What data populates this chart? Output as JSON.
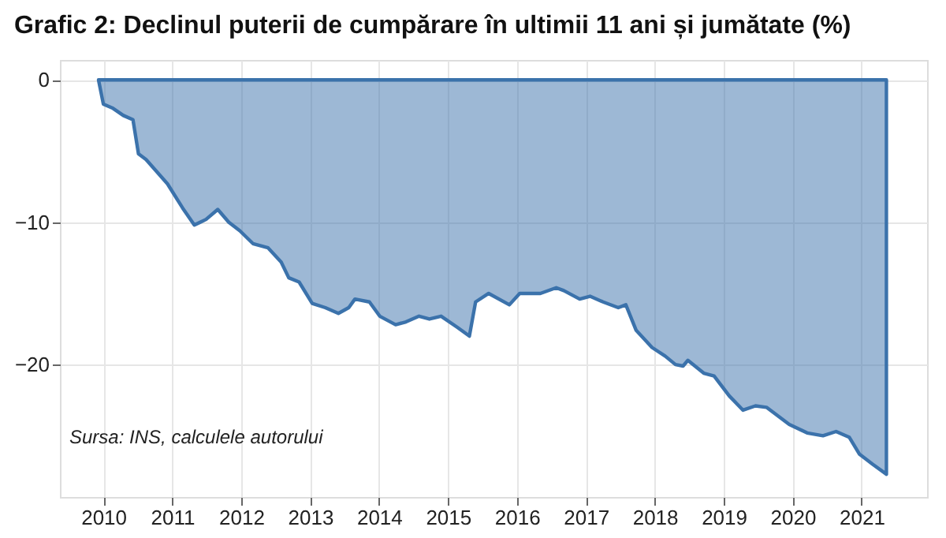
{
  "chart_data": {
    "type": "area",
    "title": "Grafic 2: Declinul puterii de cumpărare în ultimii 11 ani și jumătate (%)",
    "x": [
      2009.93,
      2010.0,
      2010.14,
      2010.29,
      2010.43,
      2010.51,
      2010.62,
      2010.93,
      2011.15,
      2011.32,
      2011.49,
      2011.66,
      2011.82,
      2011.98,
      2012.17,
      2012.39,
      2012.58,
      2012.69,
      2012.84,
      2013.03,
      2013.22,
      2013.41,
      2013.56,
      2013.65,
      2013.86,
      2014.01,
      2014.24,
      2014.39,
      2014.58,
      2014.73,
      2014.9,
      2015.14,
      2015.31,
      2015.4,
      2015.59,
      2015.89,
      2016.04,
      2016.34,
      2016.57,
      2016.68,
      2016.91,
      2017.06,
      2017.25,
      2017.47,
      2017.58,
      2017.73,
      2017.96,
      2018.15,
      2018.3,
      2018.41,
      2018.48,
      2018.71,
      2018.86,
      2019.08,
      2019.28,
      2019.46,
      2019.62,
      2019.95,
      2020.21,
      2020.44,
      2020.63,
      2020.82,
      2020.97,
      2021.16,
      2021.36
    ],
    "series": [
      {
        "color": "#3b72ab",
        "values": [
          0,
          -1.7,
          -2.0,
          -2.5,
          -2.8,
          -5.2,
          -5.6,
          -7.3,
          -9.0,
          -10.2,
          -9.8,
          -9.1,
          -10.0,
          -10.6,
          -11.5,
          -11.8,
          -12.8,
          -13.9,
          -14.2,
          -15.7,
          -16.0,
          -16.4,
          -16.0,
          -15.4,
          -15.6,
          -16.6,
          -17.2,
          -17.0,
          -16.6,
          -16.8,
          -16.6,
          -17.4,
          -18.0,
          -15.6,
          -15.0,
          -15.8,
          -15.0,
          -15.0,
          -14.6,
          -14.8,
          -15.4,
          -15.2,
          -15.6,
          -16.0,
          -15.8,
          -17.6,
          -18.8,
          -19.4,
          -20.0,
          -20.1,
          -19.7,
          -20.6,
          -20.8,
          -22.2,
          -23.2,
          -22.9,
          -23.0,
          -24.2,
          -24.8,
          -25.0,
          -24.7,
          -25.1,
          -26.3,
          -27.0,
          -27.7
        ]
      }
    ],
    "xlim": [
      2009.37,
      2021.95
    ],
    "xticks": [
      2010,
      2011,
      2012,
      2013,
      2014,
      2015,
      2016,
      2017,
      2018,
      2019,
      2020,
      2021
    ],
    "ylim": [
      -29.3,
      1.4
    ],
    "yticks": [
      0,
      -10,
      -20
    ],
    "grid": true,
    "annotations": [
      "Sursa: INS, calculele autorului"
    ]
  }
}
